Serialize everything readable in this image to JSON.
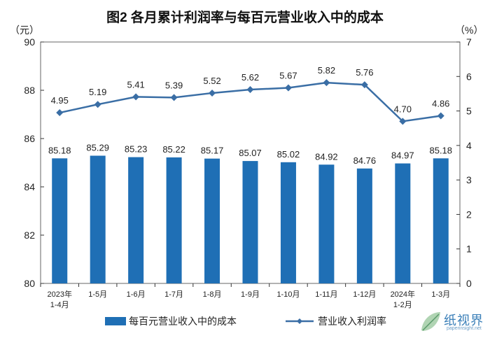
{
  "title": "图2  各月累计利润率与每百元营业收入中的成本",
  "units": {
    "left": "（元）",
    "right": "（%）"
  },
  "watermark": {
    "text": "纸视界",
    "subtext": "paperinsight.net"
  },
  "colors": {
    "bar": "#1f6fb5",
    "line": "#3a6ea5",
    "axis": "#333333",
    "plot_border": "#666666"
  },
  "chart_data": {
    "type": "bar+line",
    "categories": [
      [
        "2023年",
        "1-4月"
      ],
      [
        "1-5月"
      ],
      [
        "1-6月"
      ],
      [
        "1-7月"
      ],
      [
        "1-8月"
      ],
      [
        "1-9月"
      ],
      [
        "1-10月"
      ],
      [
        "1-11月"
      ],
      [
        "1-12月"
      ],
      [
        "2024年",
        "1-2月"
      ],
      [
        "1-3月"
      ]
    ],
    "left_axis": {
      "ylim": [
        80,
        90
      ],
      "ticks": [
        80,
        82,
        84,
        86,
        88,
        90
      ]
    },
    "right_axis": {
      "ylim": [
        0,
        7
      ],
      "ticks": [
        0,
        1,
        2,
        3,
        4,
        5,
        6,
        7
      ]
    },
    "series": [
      {
        "name": "每百元营业收入中的成本",
        "type": "bar",
        "axis": "left",
        "values": [
          85.18,
          85.29,
          85.23,
          85.22,
          85.17,
          85.07,
          85.02,
          84.92,
          84.76,
          84.97,
          85.18
        ],
        "labels": [
          "85.18",
          "85.29",
          "85.23",
          "85.22",
          "85.17",
          "85.07",
          "85.02",
          "84.92",
          "84.76",
          "84.97",
          "85.18"
        ]
      },
      {
        "name": "营业收入利润率",
        "type": "line",
        "axis": "right",
        "values": [
          4.95,
          5.19,
          5.41,
          5.39,
          5.52,
          5.62,
          5.67,
          5.82,
          5.76,
          4.7,
          4.86
        ],
        "labels": [
          "4.95",
          "5.19",
          "5.41",
          "5.39",
          "5.52",
          "5.62",
          "5.67",
          "5.82",
          "5.76",
          "4.70",
          "4.86"
        ]
      }
    ],
    "grid": false,
    "legend": "bottom"
  }
}
